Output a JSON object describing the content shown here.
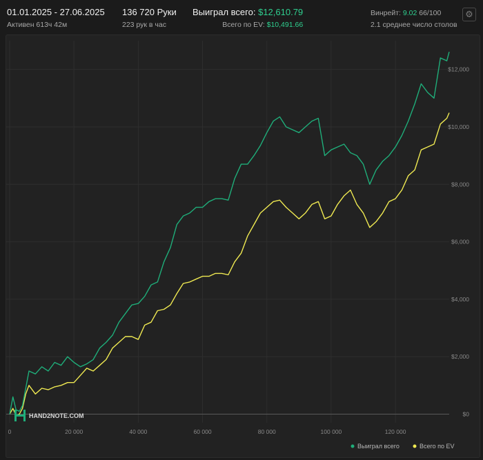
{
  "header": {
    "date_range": "01.01.2025 - 27.06.2025",
    "active_time": "Активен 613ч 42м",
    "hands": "136 720 Руки",
    "hands_per_hour": "223 рук в час",
    "won_total_label": "Выиграл всего:",
    "won_total_value": "$12,610.79",
    "ev_total_label": "Всего по EV:",
    "ev_total_value": "$10,491.66",
    "winrate_label": "Винрейт:",
    "winrate_value": "9.02",
    "winrate_suffix": "66/100",
    "avg_tables": "2.1 среднее число столов",
    "settings_icon": "gear-icon"
  },
  "logo": {
    "text": "HAND2NOTE.COM"
  },
  "colors": {
    "won": "#1fae7a",
    "ev": "#f0ea52",
    "accent": "#2fcf8f"
  },
  "chart_data": {
    "type": "line",
    "title": "",
    "xlabel": "",
    "ylabel": "",
    "xlim": [
      0,
      136720
    ],
    "ylim": [
      -300,
      13000
    ],
    "x_ticks": [
      0,
      20000,
      40000,
      60000,
      80000,
      100000,
      120000
    ],
    "x_tick_labels": [
      "0",
      "20 000",
      "40 000",
      "60 000",
      "80 000",
      "100 000",
      "120 000"
    ],
    "y_ticks": [
      0,
      2000,
      4000,
      6000,
      8000,
      10000,
      12000
    ],
    "y_tick_labels": [
      "$0",
      "$2,000",
      "$4,000",
      "$6,000",
      "$8,000",
      "$10,000",
      "$12,000"
    ],
    "grid": true,
    "legend_position": "bottom-right",
    "series": [
      {
        "name": "Выиграл всего",
        "color": "#1fae7a",
        "x": [
          0,
          1000,
          2000,
          3000,
          4000,
          5000,
          6000,
          8000,
          10000,
          12000,
          14000,
          16000,
          18000,
          20000,
          22000,
          24000,
          26000,
          28000,
          30000,
          32000,
          34000,
          36000,
          38000,
          40000,
          42000,
          44000,
          46000,
          48000,
          50000,
          52000,
          54000,
          56000,
          58000,
          60000,
          62000,
          64000,
          66000,
          68000,
          70000,
          72000,
          74000,
          76000,
          78000,
          80000,
          82000,
          84000,
          86000,
          88000,
          90000,
          92000,
          94000,
          96000,
          98000,
          100000,
          102000,
          104000,
          106000,
          108000,
          110000,
          112000,
          114000,
          116000,
          118000,
          120000,
          122000,
          124000,
          126000,
          128000,
          130000,
          132000,
          134000,
          136000,
          136720
        ],
        "y": [
          0,
          600,
          150,
          100,
          300,
          900,
          1500,
          1400,
          1650,
          1500,
          1800,
          1700,
          2000,
          1800,
          1650,
          1750,
          1900,
          2300,
          2500,
          2750,
          3200,
          3500,
          3800,
          3850,
          4100,
          4500,
          4600,
          5300,
          5800,
          6600,
          6900,
          7000,
          7200,
          7200,
          7400,
          7500,
          7500,
          7450,
          8200,
          8700,
          8700,
          9000,
          9350,
          9800,
          10200,
          10350,
          10000,
          9900,
          9800,
          10000,
          10200,
          10300,
          9000,
          9200,
          9300,
          9400,
          9100,
          9000,
          8700,
          8000,
          8500,
          8800,
          9000,
          9300,
          9700,
          10200,
          10800,
          11500,
          11200,
          11000,
          12400,
          12300,
          12610.79
        ]
      },
      {
        "name": "Всего по EV",
        "color": "#f0ea52",
        "x": [
          0,
          1000,
          2000,
          3000,
          4000,
          5000,
          6000,
          8000,
          10000,
          12000,
          14000,
          16000,
          18000,
          20000,
          22000,
          24000,
          26000,
          28000,
          30000,
          32000,
          34000,
          36000,
          38000,
          40000,
          42000,
          44000,
          46000,
          48000,
          50000,
          52000,
          54000,
          56000,
          58000,
          60000,
          62000,
          64000,
          66000,
          68000,
          70000,
          72000,
          74000,
          76000,
          78000,
          80000,
          82000,
          84000,
          86000,
          88000,
          90000,
          92000,
          94000,
          96000,
          98000,
          100000,
          102000,
          104000,
          106000,
          108000,
          110000,
          112000,
          114000,
          116000,
          118000,
          120000,
          122000,
          124000,
          126000,
          128000,
          130000,
          132000,
          134000,
          136000,
          136720
        ],
        "y": [
          0,
          200,
          -50,
          0,
          200,
          700,
          1000,
          700,
          900,
          850,
          950,
          1000,
          1100,
          1100,
          1350,
          1600,
          1500,
          1700,
          1900,
          2300,
          2500,
          2700,
          2700,
          2600,
          3100,
          3200,
          3600,
          3650,
          3800,
          4200,
          4550,
          4600,
          4700,
          4800,
          4800,
          4900,
          4900,
          4850,
          5300,
          5600,
          6200,
          6600,
          7000,
          7200,
          7400,
          7450,
          7200,
          7000,
          6800,
          7000,
          7300,
          7400,
          6800,
          6900,
          7300,
          7600,
          7800,
          7300,
          7000,
          6500,
          6700,
          7000,
          7400,
          7500,
          7800,
          8300,
          8500,
          9200,
          9300,
          9400,
          10100,
          10300,
          10491.66
        ]
      }
    ]
  },
  "legend": [
    {
      "label": "Выиграл всего",
      "color": "#1fae7a"
    },
    {
      "label": "Всего по EV",
      "color": "#f0ea52"
    }
  ]
}
